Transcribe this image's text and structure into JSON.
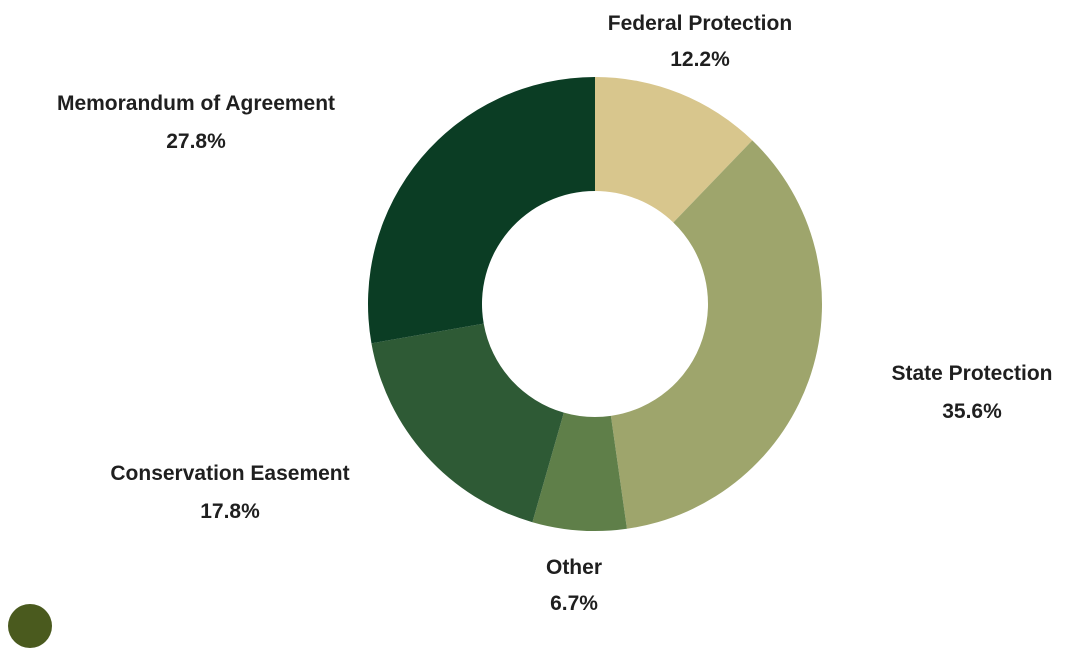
{
  "chart_data": {
    "type": "pie",
    "style": "donut",
    "slices": [
      {
        "label": "Federal Protection",
        "value_label": "12.2%",
        "value": 12.2,
        "color": "#d8c68d"
      },
      {
        "label": "State Protection",
        "value_label": "35.6%",
        "value": 35.6,
        "color": "#9ea56c"
      },
      {
        "label": "Other",
        "value_label": "6.7%",
        "value": 6.7,
        "color": "#5f7f49"
      },
      {
        "label": "Conservation Easement",
        "value_label": "17.8%",
        "value": 17.8,
        "color": "#2e5a35"
      },
      {
        "label": "Memorandum of Agreement",
        "value_label": "27.8%",
        "value": 27.8,
        "color": "#0b3d24"
      }
    ]
  }
}
